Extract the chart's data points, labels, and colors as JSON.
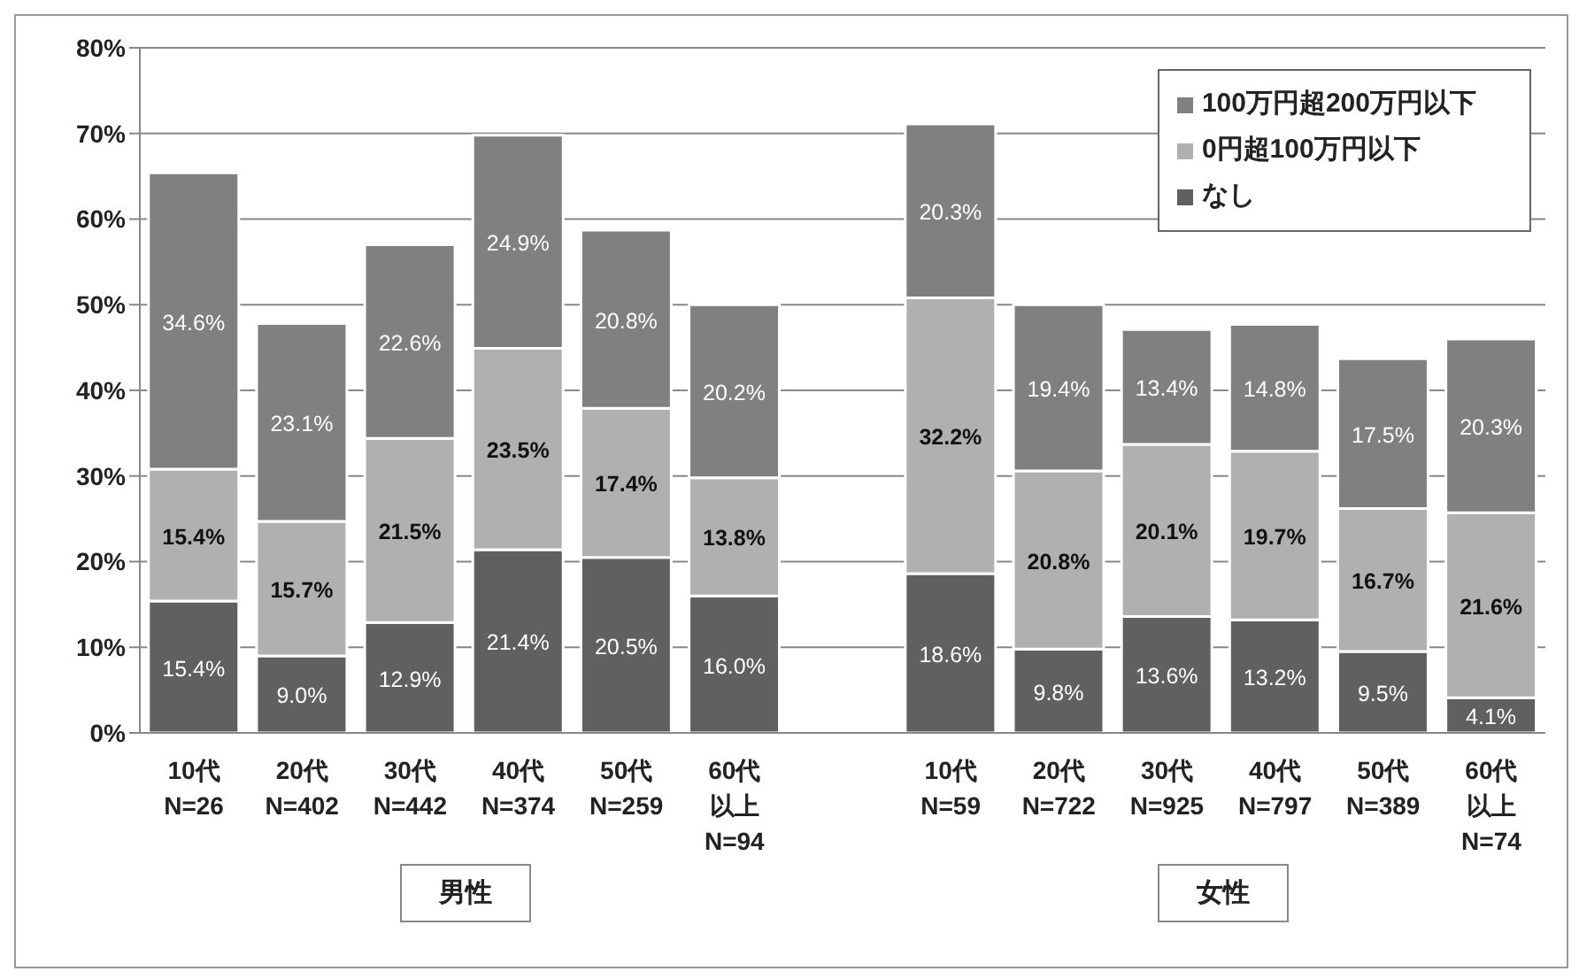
{
  "chart_data": {
    "type": "bar",
    "stacked": true,
    "categories": [
      "10代\nN=26",
      "20代\nN=402",
      "30代\nN=442",
      "40代\nN=374",
      "50代\nN=259",
      "60代以上\nN=94",
      null,
      "10代\nN=59",
      "20代\nN=722",
      "30代\nN=925",
      "40代\nN=797",
      "50代\nN=389",
      "60代以上\nN=74"
    ],
    "series": [
      {
        "name": "なし",
        "color": "#606060",
        "values": [
          15.4,
          9.0,
          12.9,
          21.4,
          20.5,
          16.0,
          null,
          18.6,
          9.8,
          13.6,
          13.2,
          9.5,
          4.1
        ],
        "value_labels": [
          "15.4%",
          "9.0%",
          "12.9%",
          "21.4%",
          "20.5%",
          "16.0%",
          null,
          "18.6%",
          "9.8%",
          "13.6%",
          "13.2%",
          "9.5%",
          "4.1%"
        ]
      },
      {
        "name": "0円超100万円以下",
        "color": "#b0b0b0",
        "values": [
          15.4,
          15.7,
          21.5,
          23.5,
          17.4,
          13.8,
          null,
          32.2,
          20.8,
          20.1,
          19.7,
          16.7,
          21.6
        ],
        "value_labels": [
          "15.4%",
          "15.7%",
          "21.5%",
          "23.5%",
          "17.4%",
          "13.8%",
          null,
          "32.2%",
          "20.8%",
          "20.1%",
          "19.7%",
          "16.7%",
          "21.6%"
        ]
      },
      {
        "name": "100万円超200万円以下",
        "color": "#808080",
        "values": [
          34.6,
          23.1,
          22.6,
          24.9,
          20.8,
          20.2,
          null,
          20.3,
          19.4,
          13.4,
          14.8,
          17.5,
          20.3
        ],
        "value_labels": [
          "34.6%",
          "23.1%",
          "22.6%",
          "24.9%",
          "20.8%",
          "20.2%",
          null,
          "20.3%",
          "19.4%",
          "13.4%",
          "14.8%",
          "17.5%",
          "20.3%"
        ]
      }
    ],
    "ylim": [
      0,
      80
    ],
    "yticks": [
      {
        "value": 0,
        "label": "0%"
      },
      {
        "value": 10,
        "label": "10%"
      },
      {
        "value": 20,
        "label": "20%"
      },
      {
        "value": 30,
        "label": "30%"
      },
      {
        "value": 40,
        "label": "40%"
      },
      {
        "value": 50,
        "label": "50%"
      },
      {
        "value": 60,
        "label": "60%"
      },
      {
        "value": 70,
        "label": "70%"
      },
      {
        "value": 80,
        "label": "80%"
      }
    ],
    "grid": "y",
    "legend": "top right",
    "annotations": [
      "男性",
      "女性"
    ]
  }
}
